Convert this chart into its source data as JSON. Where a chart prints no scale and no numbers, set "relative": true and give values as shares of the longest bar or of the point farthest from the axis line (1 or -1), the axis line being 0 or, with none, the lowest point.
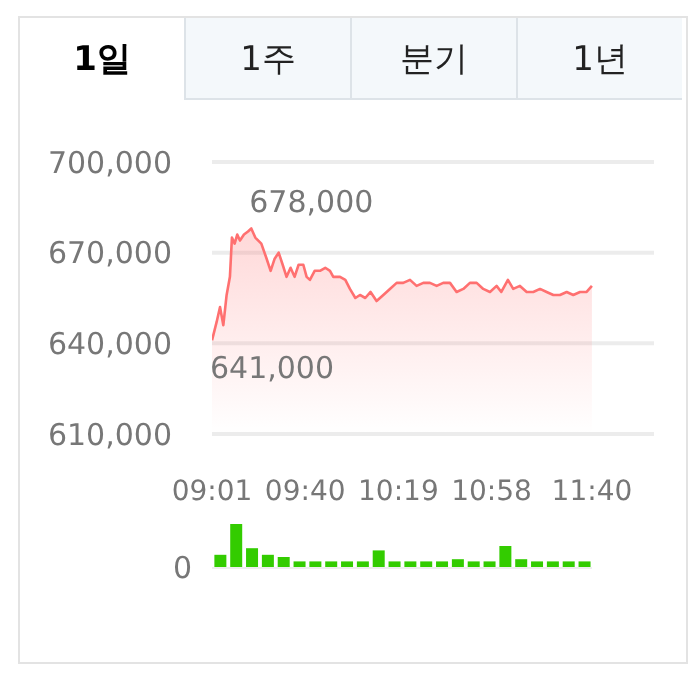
{
  "chart_data": [
    {
      "type": "area",
      "color": "#ff7070",
      "grid": "y",
      "annotations": [
        "1일",
        "1주",
        "분기",
        "1년",
        {
          "text": "678,000",
          "x": 9.291,
          "y": 678000
        },
        {
          "text": "641,000",
          "x": 9.017,
          "y": 641000
        }
      ],
      "x": [
        9.017,
        9.049,
        9.073,
        9.096,
        9.119,
        9.142,
        9.156,
        9.175,
        9.193,
        9.212,
        9.24,
        9.268,
        9.291,
        9.319,
        9.361,
        9.398,
        9.426,
        9.454,
        9.482,
        9.51,
        9.537,
        9.565,
        9.593,
        9.621,
        9.654,
        9.677,
        9.7,
        9.733,
        9.77,
        9.807,
        9.84,
        9.863,
        9.91,
        9.947,
        9.979,
        10.017,
        10.049,
        10.086,
        10.123,
        10.165,
        10.212,
        10.258,
        10.305,
        10.351,
        10.398,
        10.444,
        10.491,
        10.537,
        10.584,
        10.63,
        10.677,
        10.723,
        10.77,
        10.816,
        10.863,
        10.909,
        10.956,
        11.002,
        11.035,
        11.081,
        11.118,
        11.165,
        11.212,
        11.258,
        11.305,
        11.351,
        11.398,
        11.444,
        11.491,
        11.537,
        11.584,
        11.63,
        11.667
      ],
      "values": [
        641000,
        647000,
        652000,
        646000,
        656000,
        662000,
        675000,
        673000,
        676000,
        674000,
        676000,
        677000,
        678000,
        675000,
        673000,
        668000,
        664000,
        668000,
        670000,
        666000,
        662000,
        665000,
        662000,
        666000,
        666000,
        662000,
        661000,
        664000,
        664000,
        665000,
        664000,
        662000,
        662000,
        661000,
        658000,
        655000,
        656000,
        655000,
        657000,
        654000,
        656000,
        658000,
        660000,
        660000,
        661000,
        659000,
        660000,
        660000,
        659000,
        660000,
        660000,
        657000,
        658000,
        660000,
        660000,
        658000,
        657000,
        659000,
        657000,
        661000,
        658000,
        659000,
        657000,
        657000,
        658000,
        657000,
        656000,
        656000,
        657000,
        656000,
        657000,
        657000,
        659000
      ],
      "xlim": [
        9.017,
        12.1
      ],
      "xticks": [
        {
          "value": 9.017,
          "label": "09:01"
        },
        {
          "value": 9.667,
          "label": "09:40"
        },
        {
          "value": 10.317,
          "label": "10:19"
        },
        {
          "value": 10.967,
          "label": "10:58"
        },
        {
          "value": 11.667,
          "label": "11:40"
        }
      ],
      "ylim": [
        610000,
        700000
      ],
      "yticks": [
        {
          "value": 610000,
          "label": "610,000"
        },
        {
          "value": 640000,
          "label": "640,000"
        },
        {
          "value": 670000,
          "label": "670,000"
        },
        {
          "value": 700000,
          "label": "700,000"
        }
      ]
    },
    {
      "type": "bar",
      "color": "#33cc00",
      "relative": true,
      "annotations": [
        "0"
      ],
      "categories": [
        null,
        null,
        null,
        null,
        null,
        null,
        null,
        null,
        null,
        null,
        null,
        null,
        null,
        null,
        null,
        null,
        null,
        null,
        null,
        null,
        null,
        null,
        null,
        null
      ],
      "values": [
        0.3,
        1,
        0.45,
        0.3,
        0.25,
        0.15,
        0.15,
        0.15,
        0.15,
        0.15,
        0.4,
        0.15,
        0.15,
        0.15,
        0.15,
        0.2,
        0.15,
        0.15,
        0.5,
        0.2,
        0.15,
        0.15,
        0.15,
        0.15
      ]
    }
  ]
}
